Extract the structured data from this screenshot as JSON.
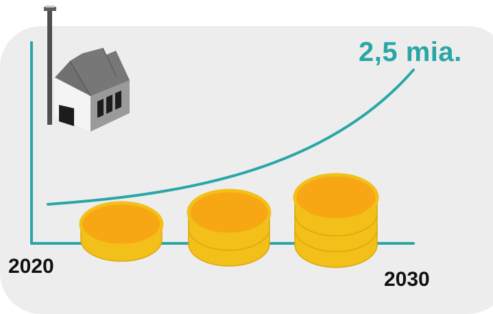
{
  "labels": {
    "start_year": "2020",
    "end_year": "2030",
    "end_value": "2,5 mia."
  },
  "icons": [
    "factory-icon",
    "coin-stack-icon"
  ],
  "coin_stacks": [
    {
      "coins": 1
    },
    {
      "coins": 2
    },
    {
      "coins": 3
    }
  ],
  "colors": {
    "background_panel": "#ededed",
    "axis_and_curve": "#2aa6a6",
    "value_text": "#2aa6a6",
    "coin_face": "#f7a614",
    "coin_side": "#f2c019",
    "factory_roof": "#6e6e6e",
    "factory_wall": "#f2f2f2",
    "text_dark": "#111111"
  }
}
